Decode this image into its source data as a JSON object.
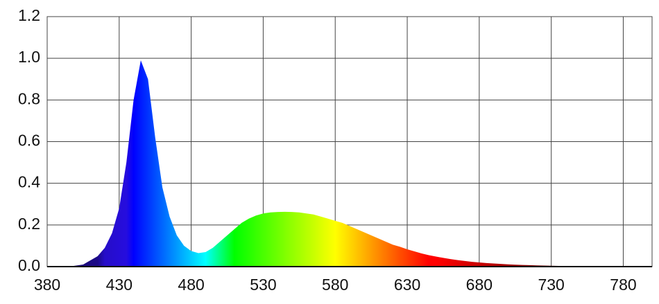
{
  "chart_data": {
    "type": "area",
    "fill": "spectrum",
    "grid": true,
    "x": [
      390,
      395,
      400,
      405,
      410,
      415,
      420,
      425,
      430,
      435,
      440,
      445,
      450,
      455,
      460,
      465,
      470,
      475,
      480,
      485,
      490,
      495,
      500,
      505,
      510,
      515,
      520,
      525,
      530,
      535,
      540,
      545,
      550,
      555,
      560,
      565,
      570,
      575,
      580,
      585,
      590,
      595,
      600,
      605,
      610,
      615,
      620,
      625,
      630,
      635,
      640,
      645,
      650,
      655,
      660,
      665,
      670,
      675,
      680,
      685,
      690,
      695,
      700,
      705,
      710,
      715,
      720,
      725,
      730,
      735,
      740,
      745,
      750,
      755,
      760,
      765,
      770,
      775,
      780,
      785,
      790,
      795,
      800
    ],
    "values": [
      0,
      0,
      0.005,
      0.01,
      0.03,
      0.05,
      0.09,
      0.16,
      0.28,
      0.5,
      0.8,
      0.99,
      0.9,
      0.62,
      0.38,
      0.24,
      0.15,
      0.1,
      0.075,
      0.065,
      0.07,
      0.09,
      0.12,
      0.15,
      0.18,
      0.21,
      0.23,
      0.245,
      0.255,
      0.26,
      0.262,
      0.263,
      0.262,
      0.26,
      0.255,
      0.25,
      0.24,
      0.23,
      0.22,
      0.21,
      0.195,
      0.18,
      0.165,
      0.15,
      0.135,
      0.12,
      0.105,
      0.095,
      0.083,
      0.073,
      0.063,
      0.055,
      0.048,
      0.042,
      0.036,
      0.031,
      0.027,
      0.023,
      0.02,
      0.017,
      0.015,
      0.013,
      0.011,
      0.009,
      0.008,
      0.007,
      0.006,
      0.005,
      0.004,
      0.0035,
      0.003,
      0.0025,
      0.002,
      0.002,
      0.0015,
      0.0015,
      0.001,
      0.001,
      0.001,
      0.001,
      0.001,
      0.001,
      0.001
    ],
    "xlim": [
      380,
      800
    ],
    "xticks": [
      380,
      430,
      480,
      530,
      580,
      630,
      680,
      730,
      780
    ],
    "ylim": [
      0,
      1.2
    ],
    "yticks": [
      {
        "value": 0,
        "label": "0.0"
      },
      0.2,
      0.4,
      0.6,
      0.8,
      {
        "value": 1,
        "label": "1.0"
      },
      1.2
    ]
  }
}
